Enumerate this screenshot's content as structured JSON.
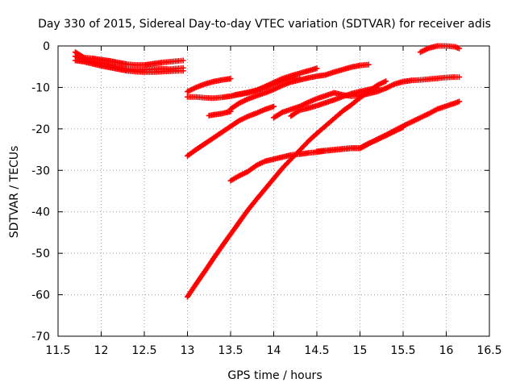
{
  "chart_data": {
    "type": "scatter",
    "title": "Day 330 of 2015, Sidereal Day-to-day VTEC variation (SDTVAR) for receiver adis",
    "xlabel": "GPS time / hours",
    "ylabel": "SDTVAR / TECUs",
    "xlim": [
      11.5,
      16.5
    ],
    "ylim": [
      -70,
      0
    ],
    "xticks": [
      11.5,
      12,
      12.5,
      13,
      13.5,
      14,
      14.5,
      15,
      15.5,
      16,
      16.5
    ],
    "xtick_labels": [
      "11.5",
      "12",
      "12.5",
      "13",
      "13.5",
      "14",
      "14.5",
      "15",
      "15.5",
      "16",
      "16.5"
    ],
    "yticks": [
      0,
      -10,
      -20,
      -30,
      -40,
      -50,
      -60,
      -70
    ],
    "ytick_labels": [
      "0",
      "-10",
      "-20",
      "-30",
      "-40",
      "-50",
      "-60",
      "-70"
    ],
    "grid": true,
    "marker": "plus",
    "color": "#ff0000",
    "series": [
      {
        "x": [
          11.7,
          11.8,
          11.9,
          12.0,
          12.1,
          12.2,
          12.3,
          12.4,
          12.5,
          12.6,
          12.7,
          12.8,
          12.9,
          12.95
        ],
        "y": [
          -1.5,
          -2.8,
          -3.0,
          -3.3,
          -3.6,
          -4.0,
          -4.4,
          -4.6,
          -4.6,
          -4.3,
          -4.0,
          -3.8,
          -3.6,
          -3.5
        ]
      },
      {
        "x": [
          11.7,
          11.8,
          11.9,
          12.0,
          12.1,
          12.2,
          12.3,
          12.4,
          12.5,
          12.6,
          12.7,
          12.8,
          12.9,
          12.95
        ],
        "y": [
          -2.5,
          -3.2,
          -3.8,
          -4.2,
          -4.6,
          -5.2,
          -5.6,
          -5.8,
          -5.7,
          -5.6,
          -5.5,
          -5.6,
          -5.4,
          -5.3
        ]
      },
      {
        "x": [
          11.7,
          11.8,
          11.9,
          12.0,
          12.1,
          12.2,
          12.3,
          12.4,
          12.5,
          12.6,
          12.7,
          12.8,
          12.9,
          12.95
        ],
        "y": [
          -3.5,
          -3.8,
          -4.3,
          -4.8,
          -5.2,
          -5.6,
          -6.0,
          -6.2,
          -6.3,
          -6.3,
          -6.2,
          -6.1,
          -6.0,
          -6.0
        ]
      },
      {
        "x": [
          13.0,
          13.1,
          13.2,
          13.3,
          13.4,
          13.5
        ],
        "y": [
          -11.0,
          -10.0,
          -9.2,
          -8.6,
          -8.2,
          -7.9
        ]
      },
      {
        "x": [
          13.0,
          13.1,
          13.2,
          13.3,
          13.4,
          13.5,
          13.6,
          13.7,
          13.8,
          13.9,
          14.0,
          14.1,
          14.2,
          14.3,
          14.4,
          14.5
        ],
        "y": [
          -12.3,
          -12.3,
          -12.5,
          -12.6,
          -12.4,
          -12.1,
          -11.7,
          -11.3,
          -10.7,
          -9.8,
          -8.8,
          -7.9,
          -7.2,
          -6.6,
          -6.0,
          -5.4
        ]
      },
      {
        "x": [
          13.0,
          13.1,
          13.2,
          13.3,
          13.4,
          13.5,
          13.6,
          13.7,
          13.8,
          13.9,
          14.0
        ],
        "y": [
          -26.5,
          -25.0,
          -23.6,
          -22.2,
          -20.8,
          -19.4,
          -18.0,
          -17.0,
          -16.2,
          -15.3,
          -14.6
        ]
      },
      {
        "x": [
          13.0,
          13.1,
          13.2,
          13.3,
          13.4,
          13.5,
          13.6,
          13.7,
          13.8,
          13.9,
          14.0,
          14.1,
          14.2,
          14.3,
          14.4,
          14.5,
          14.6,
          14.7,
          14.8,
          14.9,
          15.0,
          15.1,
          15.2,
          15.3
        ],
        "y": [
          -60.5,
          -57.4,
          -54.4,
          -51.3,
          -48.3,
          -45.4,
          -42.5,
          -39.6,
          -37.0,
          -34.5,
          -32.0,
          -29.5,
          -27.3,
          -25.2,
          -23.0,
          -21.1,
          -19.3,
          -17.5,
          -15.7,
          -14.2,
          -12.5,
          -11.0,
          -9.5,
          -8.5
        ]
      },
      {
        "x": [
          13.5,
          13.6,
          13.7,
          13.8,
          13.9,
          14.0,
          14.1,
          14.2,
          14.3,
          14.4,
          14.5,
          14.6,
          14.7,
          14.8,
          14.9,
          15.0,
          15.1,
          15.2,
          15.3,
          15.4,
          15.5,
          15.6,
          15.7,
          15.8,
          15.9,
          16.0,
          16.1,
          16.15
        ],
        "y": [
          -32.5,
          -31.3,
          -30.3,
          -28.8,
          -27.8,
          -27.3,
          -26.8,
          -26.3,
          -26.1,
          -25.8,
          -25.6,
          -25.3,
          -25.1,
          -24.9,
          -24.7,
          -24.7,
          -23.6,
          -22.5,
          -21.5,
          -20.4,
          -19.3,
          -18.3,
          -17.3,
          -16.3,
          -15.2,
          -14.5,
          -13.8,
          -13.4
        ]
      },
      {
        "x": [
          13.5,
          13.6,
          13.7,
          13.8,
          13.9,
          14.0,
          14.1,
          14.2,
          14.3,
          14.4,
          14.5,
          14.6,
          14.7,
          14.8,
          14.9,
          15.0,
          15.1
        ],
        "y": [
          -15.2,
          -13.8,
          -12.8,
          -12.0,
          -11.3,
          -10.5,
          -9.5,
          -8.7,
          -8.2,
          -7.7,
          -7.3,
          -7.0,
          -6.3,
          -5.7,
          -5.1,
          -4.7,
          -4.5
        ]
      },
      {
        "x": [
          13.55,
          13.6,
          13.7,
          13.8,
          13.9,
          14.0,
          14.1,
          14.2,
          14.3
        ],
        "y": [
          -11.8,
          -11.6,
          -11.2,
          -10.7,
          -10.0,
          -9.2,
          -8.4,
          -7.8,
          -7.9
        ]
      },
      {
        "x": [
          14.0,
          14.1,
          14.2,
          14.3,
          14.4,
          14.5,
          14.6,
          14.7,
          14.8,
          14.9,
          15.0,
          15.1,
          15.2,
          15.3,
          15.4,
          15.5,
          15.6,
          15.7,
          15.8,
          15.9,
          16.0,
          16.1,
          16.15
        ],
        "y": [
          -17.3,
          -16.0,
          -15.3,
          -14.6,
          -13.6,
          -12.7,
          -12.0,
          -11.3,
          -11.8,
          -12.1,
          -12.0,
          -11.5,
          -11.0,
          -10.2,
          -9.2,
          -8.6,
          -8.3,
          -8.2,
          -8.0,
          -7.8,
          -7.6,
          -7.5,
          -7.5
        ]
      },
      {
        "x": [
          14.2,
          14.3,
          14.4,
          14.5,
          14.6,
          14.7,
          14.8,
          14.9,
          15.0,
          15.1,
          15.2
        ],
        "y": [
          -16.9,
          -15.5,
          -15.0,
          -14.4,
          -13.7,
          -13.0,
          -12.2,
          -11.5,
          -11.0,
          -10.5,
          -10.1
        ]
      },
      {
        "x": [
          13.25,
          13.3,
          13.4,
          13.5
        ],
        "y": [
          -16.8,
          -16.6,
          -16.3,
          -15.8
        ]
      },
      {
        "x": [
          15.7,
          15.8,
          15.9,
          16.0,
          16.1,
          16.15
        ],
        "y": [
          -1.5,
          -0.5,
          0.0,
          0.0,
          -0.2,
          -0.6
        ]
      },
      {
        "x": [
          14.5,
          14.6,
          14.7,
          14.8,
          14.9,
          15.0,
          15.1,
          15.2,
          15.3,
          15.4,
          15.5
        ],
        "y": [
          -25.4,
          -25.2,
          -25.0,
          -24.8,
          -24.6,
          -24.6,
          -23.5,
          -22.6,
          -21.6,
          -20.6,
          -19.6
        ]
      }
    ]
  }
}
